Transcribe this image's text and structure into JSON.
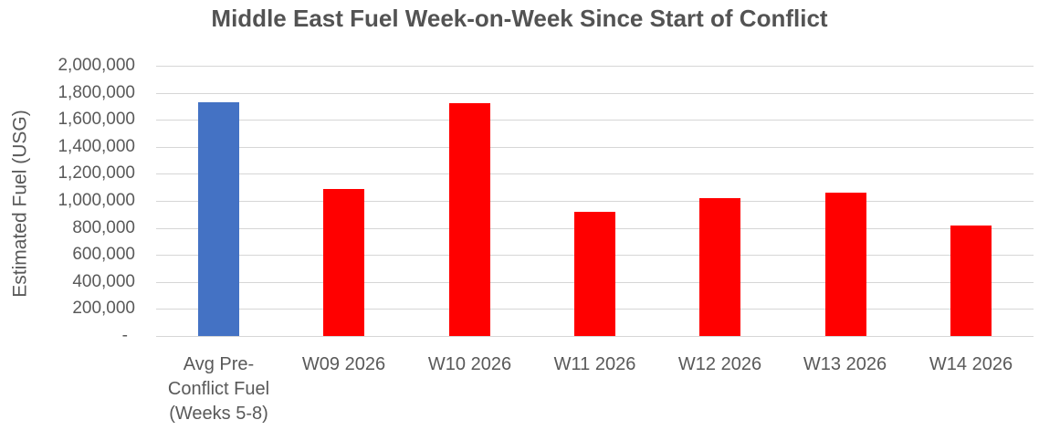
{
  "chart_data": {
    "type": "bar",
    "title": "Middle East Fuel Week-on-Week Since Start of Conflict",
    "xlabel": "",
    "ylabel": "Estimated Fuel (USG)",
    "categories": [
      "Avg Pre-\nConflict Fuel\n(Weeks 5-8)",
      "W09 2026",
      "W10 2026",
      "W11 2026",
      "W12 2026",
      "W13 2026",
      "W14 2026"
    ],
    "values": [
      1730000,
      1090000,
      1720000,
      920000,
      1020000,
      1060000,
      820000
    ],
    "bar_colors": [
      "#4472C4",
      "#FF0000",
      "#FF0000",
      "#FF0000",
      "#FF0000",
      "#FF0000",
      "#FF0000"
    ],
    "ylim": [
      0,
      2000000
    ],
    "ytick_step": 200000,
    "ytick_labels_top_to_bottom": [
      "2,000,000",
      "1,800,000",
      "1,600,000",
      "1,400,000",
      "1,200,000",
      "1,000,000",
      "800,000",
      "600,000",
      "400,000",
      "200,000",
      "-"
    ],
    "grid": true,
    "legend": false,
    "plot_background": "#ffffff",
    "gridline_color": "#d6d6d6",
    "title_color": "#535353",
    "axis_text_color": "#595959"
  }
}
